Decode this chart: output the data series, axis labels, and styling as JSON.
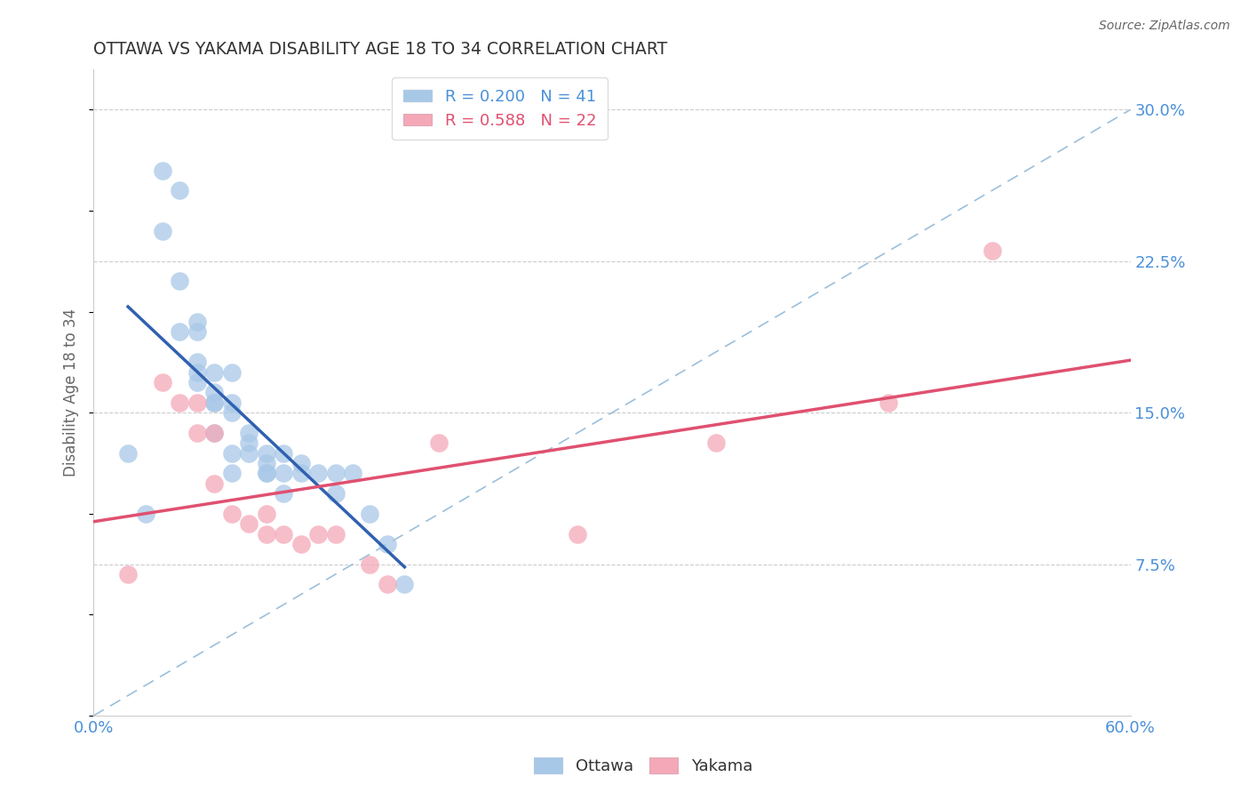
{
  "title": "OTTAWA VS YAKAMA DISABILITY AGE 18 TO 34 CORRELATION CHART",
  "source": "Source: ZipAtlas.com",
  "ylabel": "Disability Age 18 to 34",
  "xlim": [
    0.0,
    0.6
  ],
  "ylim": [
    0.0,
    0.32
  ],
  "xticks": [
    0.0,
    0.15,
    0.3,
    0.45,
    0.6
  ],
  "xtick_labels": [
    "0.0%",
    "",
    "",
    "",
    "60.0%"
  ],
  "ytick_labels_right": [
    "7.5%",
    "15.0%",
    "22.5%",
    "30.0%"
  ],
  "yticks_right": [
    0.075,
    0.15,
    0.225,
    0.3
  ],
  "legend_bottom": [
    "Ottawa",
    "Yakama"
  ],
  "ottawa_R": 0.2,
  "ottawa_N": 41,
  "yakama_R": 0.588,
  "yakama_N": 22,
  "ottawa_color": "#a8c8e8",
  "yakama_color": "#f4a8b8",
  "ottawa_line_color": "#3060b0",
  "yakama_line_color": "#e05070",
  "ref_line_color": "#90b8d8",
  "title_color": "#333333",
  "axis_label_color": "#666666",
  "tick_color": "#4a90d9",
  "ottawa_x": [
    0.02,
    0.03,
    0.04,
    0.04,
    0.05,
    0.05,
    0.05,
    0.06,
    0.06,
    0.06,
    0.06,
    0.06,
    0.07,
    0.07,
    0.07,
    0.07,
    0.07,
    0.08,
    0.08,
    0.08,
    0.08,
    0.08,
    0.09,
    0.09,
    0.09,
    0.1,
    0.1,
    0.1,
    0.1,
    0.11,
    0.11,
    0.11,
    0.12,
    0.12,
    0.13,
    0.14,
    0.14,
    0.15,
    0.16,
    0.17,
    0.18
  ],
  "ottawa_y": [
    0.13,
    0.1,
    0.27,
    0.24,
    0.26,
    0.215,
    0.19,
    0.195,
    0.19,
    0.175,
    0.17,
    0.165,
    0.17,
    0.16,
    0.155,
    0.155,
    0.14,
    0.17,
    0.155,
    0.15,
    0.13,
    0.12,
    0.14,
    0.135,
    0.13,
    0.13,
    0.125,
    0.12,
    0.12,
    0.13,
    0.12,
    0.11,
    0.125,
    0.12,
    0.12,
    0.12,
    0.11,
    0.12,
    0.1,
    0.085,
    0.065
  ],
  "yakama_x": [
    0.02,
    0.04,
    0.05,
    0.06,
    0.06,
    0.07,
    0.07,
    0.08,
    0.09,
    0.1,
    0.1,
    0.11,
    0.12,
    0.13,
    0.14,
    0.16,
    0.17,
    0.2,
    0.28,
    0.36,
    0.46,
    0.52
  ],
  "yakama_y": [
    0.07,
    0.165,
    0.155,
    0.155,
    0.14,
    0.14,
    0.115,
    0.1,
    0.095,
    0.1,
    0.09,
    0.09,
    0.085,
    0.09,
    0.09,
    0.075,
    0.065,
    0.135,
    0.09,
    0.135,
    0.155,
    0.23
  ],
  "background_color": "#ffffff",
  "grid_color": "#cccccc"
}
